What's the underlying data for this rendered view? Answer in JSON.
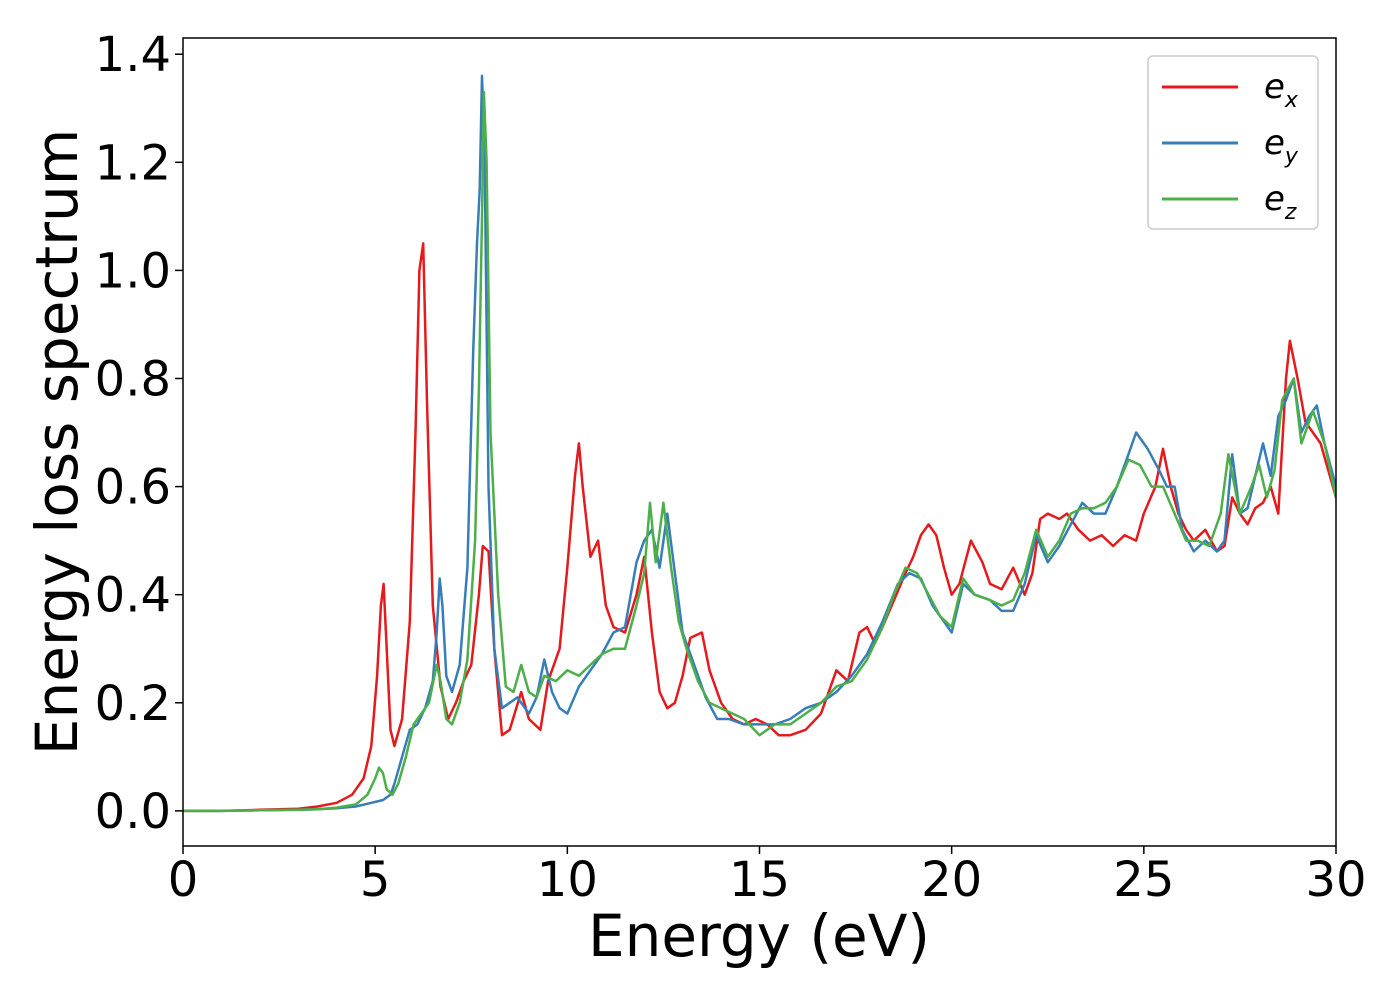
{
  "chart_data": {
    "type": "line",
    "title": "",
    "xlabel": "Energy (eV)",
    "ylabel": "Energy loss spectrum",
    "xlim": [
      0,
      30
    ],
    "ylim": [
      -0.065,
      1.43
    ],
    "xticks": [
      0,
      5,
      10,
      15,
      20,
      25,
      30
    ],
    "yticks": [
      0.0,
      0.2,
      0.4,
      0.6,
      0.8,
      1.0,
      1.2,
      1.4
    ],
    "xtick_labels": [
      "0",
      "5",
      "10",
      "15",
      "20",
      "25",
      "30"
    ],
    "ytick_labels": [
      "0.0",
      "0.2",
      "0.4",
      "0.6",
      "0.8",
      "1.0",
      "1.2",
      "1.4"
    ],
    "grid": false,
    "legend": {
      "placement": "top-right"
    },
    "series": [
      {
        "name": "e_x",
        "label_base": "e",
        "label_sub": "x",
        "color": "#e41a1c",
        "x": [
          0,
          1,
          2,
          3,
          3.5,
          4,
          4.4,
          4.7,
          4.9,
          5.05,
          5.15,
          5.22,
          5.3,
          5.4,
          5.5,
          5.7,
          5.9,
          6.05,
          6.15,
          6.25,
          6.35,
          6.5,
          6.7,
          6.9,
          7.1,
          7.3,
          7.5,
          7.7,
          7.8,
          7.95,
          8.1,
          8.3,
          8.5,
          8.8,
          9.0,
          9.3,
          9.5,
          9.8,
          10.0,
          10.2,
          10.3,
          10.4,
          10.6,
          10.8,
          11.0,
          11.2,
          11.5,
          11.8,
          12.0,
          12.2,
          12.4,
          12.6,
          12.8,
          13.0,
          13.2,
          13.5,
          13.7,
          14.0,
          14.3,
          14.6,
          14.9,
          15.2,
          15.5,
          15.8,
          16.2,
          16.6,
          17.0,
          17.3,
          17.6,
          17.8,
          18.0,
          18.2,
          18.5,
          18.8,
          19.0,
          19.2,
          19.4,
          19.6,
          19.8,
          20.0,
          20.2,
          20.5,
          20.8,
          21.0,
          21.3,
          21.6,
          21.9,
          22.1,
          22.3,
          22.5,
          22.8,
          23.0,
          23.3,
          23.6,
          23.9,
          24.2,
          24.5,
          24.8,
          25.0,
          25.3,
          25.5,
          25.7,
          25.9,
          26.1,
          26.3,
          26.6,
          26.9,
          27.1,
          27.3,
          27.5,
          27.7,
          27.9,
          28.1,
          28.3,
          28.5,
          28.7,
          28.8,
          29.0,
          29.2,
          29.4,
          29.6,
          29.8,
          30.0
        ],
        "values": [
          0.0,
          0.0,
          0.002,
          0.004,
          0.008,
          0.015,
          0.03,
          0.06,
          0.12,
          0.25,
          0.38,
          0.42,
          0.3,
          0.15,
          0.12,
          0.17,
          0.35,
          0.7,
          1.0,
          1.05,
          0.75,
          0.38,
          0.23,
          0.17,
          0.2,
          0.24,
          0.27,
          0.4,
          0.49,
          0.48,
          0.3,
          0.14,
          0.15,
          0.22,
          0.17,
          0.15,
          0.24,
          0.3,
          0.45,
          0.62,
          0.68,
          0.6,
          0.47,
          0.5,
          0.38,
          0.34,
          0.33,
          0.4,
          0.47,
          0.33,
          0.22,
          0.19,
          0.2,
          0.25,
          0.32,
          0.33,
          0.26,
          0.2,
          0.17,
          0.16,
          0.17,
          0.16,
          0.14,
          0.14,
          0.15,
          0.18,
          0.26,
          0.24,
          0.33,
          0.34,
          0.31,
          0.34,
          0.39,
          0.44,
          0.47,
          0.51,
          0.53,
          0.51,
          0.45,
          0.4,
          0.42,
          0.5,
          0.46,
          0.42,
          0.41,
          0.45,
          0.4,
          0.44,
          0.54,
          0.55,
          0.54,
          0.55,
          0.52,
          0.5,
          0.51,
          0.49,
          0.51,
          0.5,
          0.55,
          0.6,
          0.67,
          0.6,
          0.55,
          0.52,
          0.5,
          0.52,
          0.48,
          0.49,
          0.58,
          0.55,
          0.53,
          0.56,
          0.57,
          0.6,
          0.55,
          0.8,
          0.87,
          0.8,
          0.72,
          0.7,
          0.68,
          0.63,
          0.58
        ]
      },
      {
        "name": "e_y",
        "label_base": "e",
        "label_sub": "y",
        "color": "#377eb8",
        "x": [
          0,
          1,
          2,
          3,
          3.5,
          4,
          4.5,
          4.9,
          5.2,
          5.4,
          5.5,
          5.7,
          5.9,
          6.1,
          6.3,
          6.5,
          6.6,
          6.68,
          6.75,
          6.85,
          7.0,
          7.2,
          7.4,
          7.55,
          7.65,
          7.72,
          7.78,
          7.85,
          7.95,
          8.1,
          8.3,
          8.5,
          8.7,
          9.0,
          9.2,
          9.4,
          9.6,
          9.8,
          10.0,
          10.3,
          10.6,
          10.9,
          11.2,
          11.5,
          11.8,
          12.0,
          12.2,
          12.4,
          12.6,
          12.8,
          13.0,
          13.3,
          13.6,
          13.9,
          14.2,
          14.6,
          15.0,
          15.4,
          15.8,
          16.2,
          16.6,
          17.0,
          17.4,
          17.8,
          18.2,
          18.6,
          18.9,
          19.2,
          19.5,
          19.8,
          20.0,
          20.3,
          20.6,
          21.0,
          21.3,
          21.6,
          21.9,
          22.2,
          22.5,
          22.8,
          23.1,
          23.4,
          23.7,
          24.0,
          24.3,
          24.6,
          24.8,
          25.1,
          25.4,
          25.6,
          25.8,
          26.0,
          26.3,
          26.6,
          26.9,
          27.1,
          27.3,
          27.5,
          27.7,
          27.9,
          28.1,
          28.3,
          28.5,
          28.7,
          28.9,
          29.1,
          29.3,
          29.5,
          29.7,
          30.0
        ],
        "values": [
          0.0,
          0.0,
          0.001,
          0.002,
          0.003,
          0.005,
          0.008,
          0.015,
          0.02,
          0.03,
          0.05,
          0.1,
          0.15,
          0.16,
          0.19,
          0.24,
          0.33,
          0.43,
          0.38,
          0.25,
          0.22,
          0.27,
          0.45,
          0.85,
          1.05,
          1.15,
          1.36,
          1.2,
          0.6,
          0.3,
          0.19,
          0.2,
          0.21,
          0.18,
          0.21,
          0.28,
          0.22,
          0.19,
          0.18,
          0.23,
          0.26,
          0.29,
          0.33,
          0.34,
          0.46,
          0.5,
          0.52,
          0.45,
          0.55,
          0.44,
          0.33,
          0.27,
          0.21,
          0.17,
          0.17,
          0.16,
          0.16,
          0.16,
          0.17,
          0.19,
          0.2,
          0.22,
          0.25,
          0.29,
          0.35,
          0.42,
          0.44,
          0.43,
          0.38,
          0.35,
          0.33,
          0.42,
          0.4,
          0.39,
          0.37,
          0.37,
          0.42,
          0.51,
          0.46,
          0.49,
          0.53,
          0.57,
          0.55,
          0.55,
          0.6,
          0.66,
          0.7,
          0.67,
          0.63,
          0.6,
          0.6,
          0.52,
          0.48,
          0.5,
          0.48,
          0.5,
          0.66,
          0.55,
          0.56,
          0.62,
          0.68,
          0.62,
          0.73,
          0.76,
          0.8,
          0.7,
          0.73,
          0.75,
          0.68,
          0.6
        ]
      },
      {
        "name": "e_z",
        "label_base": "e",
        "label_sub": "z",
        "color": "#4daf4a",
        "x": [
          0,
          1,
          2,
          3,
          3.5,
          4,
          4.5,
          4.8,
          5.0,
          5.1,
          5.2,
          5.3,
          5.45,
          5.6,
          5.8,
          6.0,
          6.2,
          6.4,
          6.6,
          6.7,
          6.85,
          7.0,
          7.2,
          7.4,
          7.6,
          7.7,
          7.78,
          7.83,
          7.9,
          8.0,
          8.2,
          8.4,
          8.6,
          8.8,
          9.0,
          9.2,
          9.4,
          9.7,
          10.0,
          10.3,
          10.6,
          10.9,
          11.2,
          11.5,
          11.8,
          12.0,
          12.15,
          12.3,
          12.5,
          12.7,
          12.9,
          13.1,
          13.4,
          13.7,
          14.0,
          14.3,
          14.6,
          15.0,
          15.4,
          15.8,
          16.2,
          16.6,
          17.0,
          17.4,
          17.8,
          18.2,
          18.5,
          18.8,
          19.1,
          19.4,
          19.7,
          20.0,
          20.3,
          20.6,
          21.0,
          21.3,
          21.6,
          21.9,
          22.2,
          22.5,
          22.8,
          23.1,
          23.4,
          23.7,
          24.0,
          24.3,
          24.6,
          24.9,
          25.2,
          25.5,
          25.8,
          26.1,
          26.4,
          26.7,
          27.0,
          27.2,
          27.5,
          27.8,
          28.0,
          28.2,
          28.4,
          28.6,
          28.9,
          29.1,
          29.4,
          29.7,
          30.0
        ],
        "values": [
          0.0,
          0.0,
          0.001,
          0.002,
          0.003,
          0.006,
          0.012,
          0.03,
          0.06,
          0.08,
          0.07,
          0.04,
          0.03,
          0.05,
          0.1,
          0.16,
          0.18,
          0.2,
          0.27,
          0.24,
          0.17,
          0.16,
          0.2,
          0.28,
          0.5,
          0.78,
          1.1,
          1.33,
          1.2,
          0.7,
          0.4,
          0.23,
          0.22,
          0.27,
          0.22,
          0.21,
          0.25,
          0.24,
          0.26,
          0.25,
          0.27,
          0.29,
          0.3,
          0.3,
          0.38,
          0.44,
          0.57,
          0.46,
          0.57,
          0.45,
          0.35,
          0.3,
          0.24,
          0.2,
          0.19,
          0.18,
          0.17,
          0.14,
          0.16,
          0.16,
          0.18,
          0.2,
          0.23,
          0.24,
          0.28,
          0.34,
          0.4,
          0.45,
          0.44,
          0.4,
          0.36,
          0.34,
          0.43,
          0.4,
          0.39,
          0.38,
          0.39,
          0.44,
          0.52,
          0.47,
          0.5,
          0.55,
          0.56,
          0.56,
          0.57,
          0.6,
          0.65,
          0.64,
          0.6,
          0.6,
          0.55,
          0.5,
          0.5,
          0.49,
          0.55,
          0.66,
          0.55,
          0.6,
          0.64,
          0.58,
          0.63,
          0.76,
          0.8,
          0.68,
          0.74,
          0.68,
          0.58
        ]
      }
    ]
  }
}
